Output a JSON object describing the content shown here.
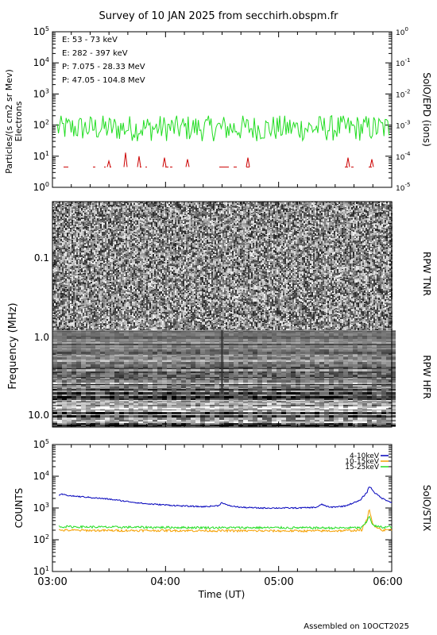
{
  "title": "Survey of 10 JAN 2025 from secchirh.obspm.fr",
  "footer": "Assembled on 10OCT2025",
  "colors": {
    "green": "#22dd22",
    "red": "#cc0000",
    "black": "#000000",
    "blue": "#0000bb",
    "orange": "#f5a000"
  },
  "chart_data": [
    {
      "type": "line",
      "name": "particles",
      "ylabel_left": "Particles/(s cm2 sr Mev)",
      "ylabel_left2": "Electrons",
      "ylabel_right": "SolO/EPD (ions)",
      "yscale": "log",
      "ylim": [
        1,
        100000
      ],
      "yticks": [
        "10^0",
        "10^1",
        "10^2",
        "10^3",
        "10^4",
        "10^5"
      ],
      "right_ylim": [
        1e-05,
        1
      ],
      "right_yticks": [
        "10^-5",
        "10^-4",
        "10^-3",
        "10^-2",
        "10^-1",
        "10^0"
      ],
      "xlim": [
        "03:00",
        "06:00"
      ],
      "legend": [
        {
          "label": "E: 53 - 73 keV",
          "color": "#22dd22"
        },
        {
          "label": "E: 282 - 397 keV",
          "color": "#cc0000"
        },
        {
          "label": "P: 7.075 - 28.33 MeV",
          "color": "#000000"
        },
        {
          "label": "P: 47.05 - 104.8 MeV",
          "color": "#0000bb"
        }
      ],
      "series": [
        {
          "name": "E: 53 - 73 keV",
          "color": "#22dd22",
          "baseline": 80,
          "range": [
            25,
            200
          ]
        },
        {
          "name": "E: 282 - 397 keV",
          "color": "#cc0000",
          "baseline": 4.5,
          "range": [
            4,
            14
          ]
        }
      ]
    },
    {
      "type": "heatmap",
      "name": "radio",
      "ylabel": "Frequency (MHz)",
      "yscale": "log",
      "ylim": [
        0.04,
        13
      ],
      "yticks": [
        "0.1",
        "1.0",
        "10.0"
      ],
      "right_labels": [
        "RPW TNR",
        "RPW HFR"
      ],
      "xlim": [
        "03:00",
        "06:00"
      ]
    },
    {
      "type": "line",
      "name": "stix",
      "ylabel": "COUNTS",
      "ylabel_right": "SolO/STIX",
      "yscale": "log",
      "ylim": [
        10,
        100000
      ],
      "yticks": [
        "10^1",
        "10^2",
        "10^3",
        "10^4",
        "10^5"
      ],
      "xlabel": "Time (UT)",
      "xlim": [
        "03:00",
        "06:00"
      ],
      "xticks": [
        "03:00",
        "04:00",
        "05:00",
        "06:00"
      ],
      "legend": [
        {
          "label": "4-10keV",
          "color": "#0000bb"
        },
        {
          "label": "10-15keV",
          "color": "#f5a000"
        },
        {
          "label": "15-25keV",
          "color": "#22dd22"
        }
      ],
      "series": [
        {
          "name": "4-10keV",
          "color": "#0000bb",
          "x": [
            "03:00",
            "03:05",
            "03:10",
            "03:20",
            "03:30",
            "03:40",
            "03:50",
            "04:00",
            "04:10",
            "04:20",
            "04:28",
            "04:30",
            "04:33",
            "04:40",
            "04:50",
            "05:00",
            "05:10",
            "05:20",
            "05:23",
            "05:27",
            "05:35",
            "05:43",
            "05:47",
            "05:48",
            "05:49",
            "05:51",
            "05:55",
            "06:00"
          ],
          "y": [
            2000,
            2700,
            2400,
            2150,
            1900,
            1600,
            1350,
            1250,
            1150,
            1100,
            1180,
            1500,
            1200,
            1050,
            1000,
            1000,
            1000,
            1050,
            1300,
            1050,
            1150,
            1700,
            3200,
            4800,
            4300,
            3000,
            2000,
            1500
          ]
        },
        {
          "name": "10-15keV",
          "color": "#f5a000",
          "x": [
            "03:00",
            "03:30",
            "04:00",
            "04:30",
            "05:00",
            "05:30",
            "05:44",
            "05:47",
            "05:48",
            "05:50",
            "05:55",
            "06:00"
          ],
          "y": [
            200,
            195,
            195,
            192,
            190,
            190,
            200,
            450,
            900,
            300,
            200,
            210
          ]
        },
        {
          "name": "15-25keV",
          "color": "#22dd22",
          "x": [
            "03:00",
            "03:30",
            "04:00",
            "04:30",
            "05:00",
            "05:30",
            "05:44",
            "05:47",
            "05:48",
            "05:50",
            "05:55",
            "06:00"
          ],
          "y": [
            260,
            250,
            245,
            240,
            240,
            235,
            240,
            380,
            600,
            280,
            245,
            260
          ]
        }
      ]
    }
  ]
}
